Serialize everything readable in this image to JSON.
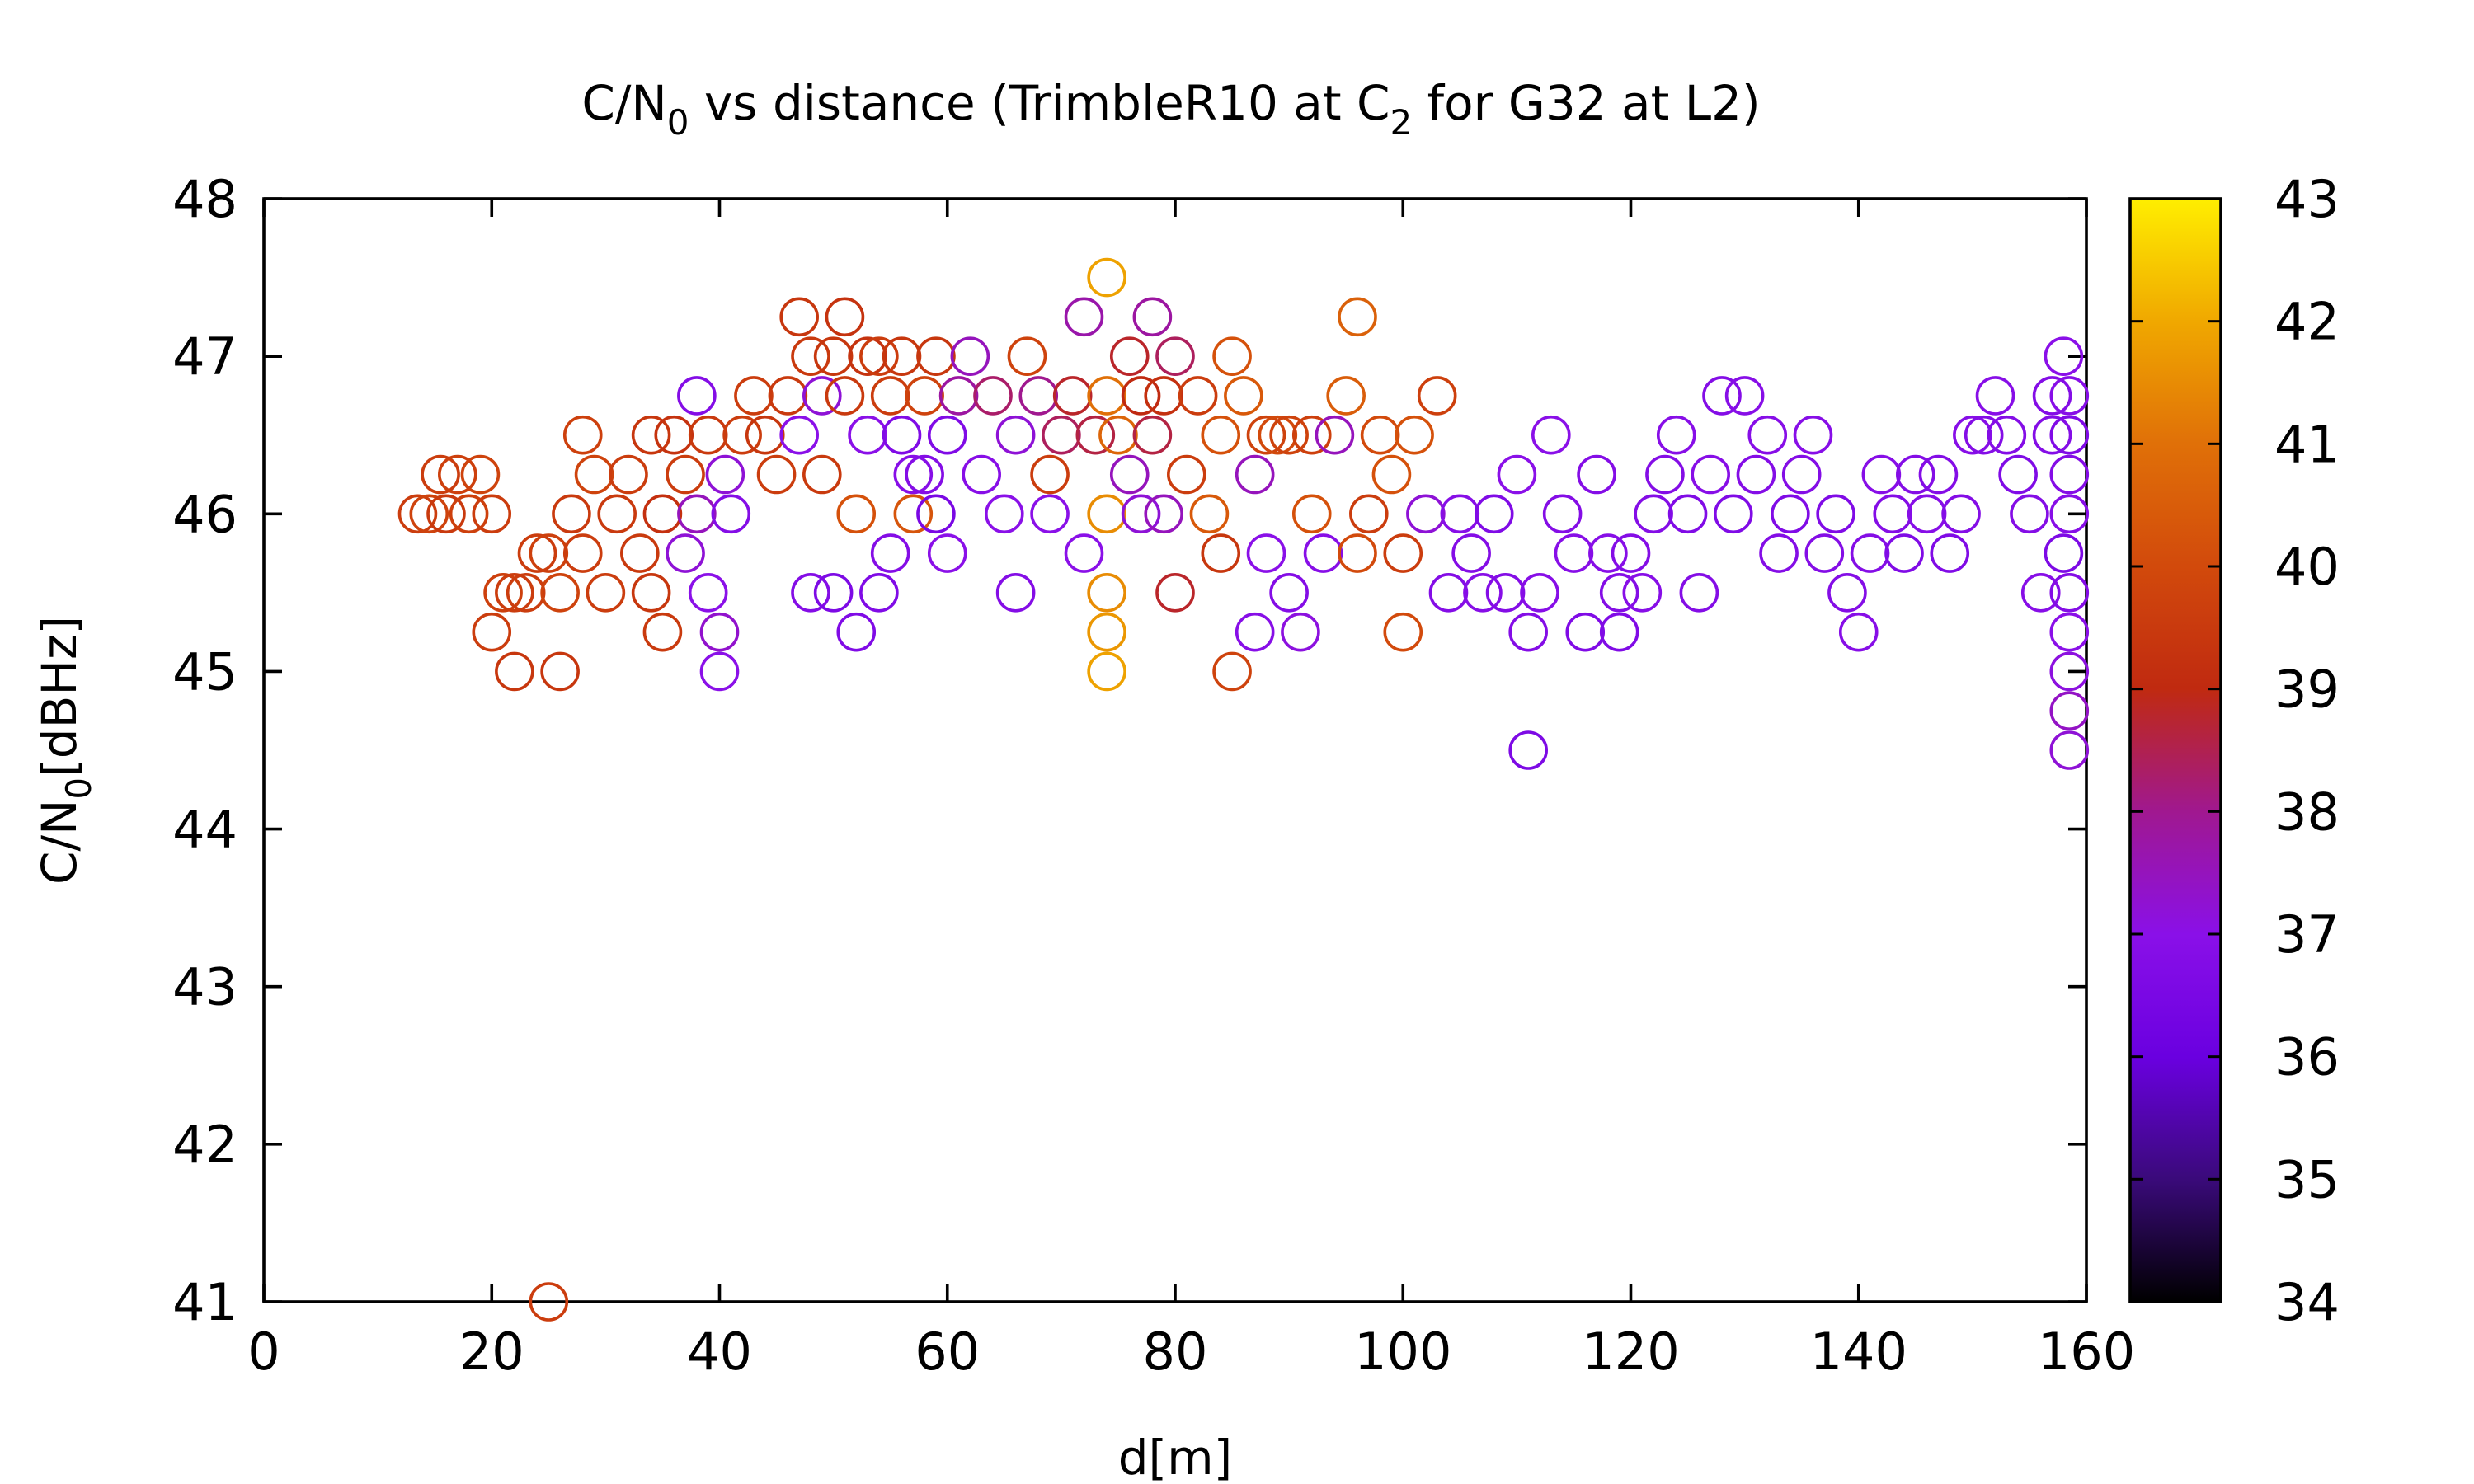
{
  "chart_data": {
    "type": "scatter",
    "title": {
      "pre": "C/N",
      "sub1": "0",
      "mid": " vs distance (TrimbleR10 at C",
      "sub2": "2",
      "post": " for G32 at L2)"
    },
    "xlabel": "d[m]",
    "ylabel": {
      "pre": "C/N",
      "sub": "0",
      "post": "[dBHz]"
    },
    "xlim": [
      0,
      160
    ],
    "ylim": [
      41,
      48
    ],
    "xticks": [
      "0",
      "20",
      "40",
      "60",
      "80",
      "100",
      "120",
      "140",
      "160"
    ],
    "yticks": [
      "41",
      "42",
      "43",
      "44",
      "45",
      "46",
      "47",
      "48"
    ],
    "colorbar": {
      "range": [
        34,
        43
      ],
      "ticks": [
        "34",
        "35",
        "36",
        "37",
        "38",
        "39",
        "40",
        "41",
        "42",
        "43"
      ]
    },
    "marker": "open circle",
    "grid": false,
    "note": "color encodes a third variable (values approx. read from colorbar)",
    "points": [
      [
        13.5,
        46,
        39.6
      ],
      [
        14.5,
        46,
        39.8
      ],
      [
        15.5,
        46.25,
        39.6
      ],
      [
        16,
        46,
        39.5
      ],
      [
        17,
        46.25,
        39.7
      ],
      [
        18,
        46,
        39.7
      ],
      [
        19,
        46.25,
        39.8
      ],
      [
        20,
        46,
        39.6
      ],
      [
        20,
        45.25,
        39.6
      ],
      [
        21,
        45.5,
        39.7
      ],
      [
        22,
        45.5,
        39.6
      ],
      [
        22,
        45,
        39.4
      ],
      [
        23,
        45.5,
        39.6
      ],
      [
        24,
        45.75,
        39.6
      ],
      [
        25,
        45.75,
        39.7
      ],
      [
        26,
        45,
        39.4
      ],
      [
        26,
        45.5,
        39.8
      ],
      [
        27,
        46,
        39.5
      ],
      [
        28,
        46.5,
        39.7
      ],
      [
        28,
        45.75,
        39.6
      ],
      [
        29,
        46.25,
        39.8
      ],
      [
        30,
        45.5,
        39.6
      ],
      [
        31,
        46,
        39.5
      ],
      [
        32,
        46.25,
        39.6
      ],
      [
        33,
        45.75,
        39.5
      ],
      [
        34,
        45.5,
        39.4
      ],
      [
        34,
        46.5,
        39.4
      ],
      [
        35,
        45.25,
        39.5
      ],
      [
        35,
        46,
        39.2
      ],
      [
        36,
        46.5,
        39.3
      ],
      [
        37,
        45.75,
        37.2
      ],
      [
        37,
        46.25,
        39.6
      ],
      [
        38,
        46.75,
        36.8
      ],
      [
        38,
        46,
        37.5
      ],
      [
        39,
        45.5,
        37
      ],
      [
        39,
        46.5,
        39.5
      ],
      [
        40,
        45.25,
        37.3
      ],
      [
        40,
        45,
        37
      ],
      [
        40.5,
        46.25,
        37.2
      ],
      [
        41,
        46,
        36.8
      ],
      [
        42,
        46.5,
        39.6
      ],
      [
        43,
        46.75,
        39.6
      ],
      [
        44,
        46.5,
        39.4
      ],
      [
        45,
        46.25,
        39.6
      ],
      [
        46,
        46.75,
        39.5
      ],
      [
        47,
        47.25,
        39.4
      ],
      [
        47,
        46.5,
        37
      ],
      [
        48,
        47,
        39.5
      ],
      [
        48,
        45.5,
        36.8
      ],
      [
        49,
        46.75,
        37.2
      ],
      [
        49,
        46.25,
        39.5
      ],
      [
        50,
        45.5,
        36.6
      ],
      [
        50,
        47,
        39.4
      ],
      [
        51,
        46.75,
        39.5
      ],
      [
        51,
        47.25,
        39.3
      ],
      [
        52,
        45.25,
        36.7
      ],
      [
        52,
        46,
        40.2
      ],
      [
        53,
        47,
        39.3
      ],
      [
        53,
        46.5,
        37
      ],
      [
        54,
        45.5,
        36.7
      ],
      [
        54,
        47,
        39.6
      ],
      [
        55,
        46.75,
        39.6
      ],
      [
        55,
        45.75,
        36.8
      ],
      [
        56,
        46.5,
        36.7
      ],
      [
        56,
        47,
        39.4
      ],
      [
        57,
        46.25,
        36.9
      ],
      [
        57,
        46,
        40.3
      ],
      [
        58,
        46.75,
        39.8
      ],
      [
        58,
        46.25,
        36.8
      ],
      [
        59,
        46,
        36.5
      ],
      [
        59,
        47,
        39.4
      ],
      [
        60,
        46.5,
        36.7
      ],
      [
        60,
        45.75,
        37
      ],
      [
        61,
        46.75,
        37.8
      ],
      [
        62,
        47,
        37.5
      ],
      [
        63,
        46.25,
        36.9
      ],
      [
        64,
        46.75,
        38.3
      ],
      [
        65,
        46,
        37
      ],
      [
        66,
        46.5,
        37.2
      ],
      [
        66,
        45.5,
        36.8
      ],
      [
        67,
        47,
        39.8
      ],
      [
        68,
        46.75,
        38
      ],
      [
        69,
        46.25,
        39.6
      ],
      [
        69,
        46,
        37
      ],
      [
        70,
        46.5,
        38.4
      ],
      [
        71,
        46.75,
        38.8
      ],
      [
        72,
        47.25,
        37.7
      ],
      [
        72,
        45.75,
        37
      ],
      [
        73,
        46.5,
        38.6
      ],
      [
        74,
        47.5,
        41.9
      ],
      [
        74,
        46.75,
        41
      ],
      [
        74,
        46,
        41.5
      ],
      [
        74,
        45.5,
        41.5
      ],
      [
        74,
        45.25,
        41.7
      ],
      [
        74,
        45,
        41.9
      ],
      [
        75,
        46.5,
        40.7
      ],
      [
        76,
        47,
        38.8
      ],
      [
        76,
        46.25,
        37.5
      ],
      [
        77,
        46.75,
        39
      ],
      [
        77,
        46,
        37.2
      ],
      [
        78,
        47.25,
        37.8
      ],
      [
        78,
        46.5,
        38.6
      ],
      [
        79,
        46.75,
        39.2
      ],
      [
        79,
        46,
        37.5
      ],
      [
        80,
        47,
        38.4
      ],
      [
        80,
        45.5,
        38.8
      ],
      [
        81,
        46.25,
        39.6
      ],
      [
        82,
        46.75,
        39.6
      ],
      [
        83,
        46,
        40.4
      ],
      [
        84,
        46.5,
        40.2
      ],
      [
        84,
        45.75,
        39.4
      ],
      [
        85,
        47,
        40.2
      ],
      [
        85,
        45,
        39.8
      ],
      [
        86,
        46.75,
        40.4
      ],
      [
        87,
        46.25,
        37.5
      ],
      [
        87,
        45.25,
        36.9
      ],
      [
        88,
        46.5,
        39.8
      ],
      [
        88,
        45.75,
        37
      ],
      [
        89,
        46.5,
        40
      ],
      [
        90,
        45.5,
        36.8
      ],
      [
        90,
        46.5,
        39.8
      ],
      [
        91,
        45.25,
        37.1
      ],
      [
        92,
        46,
        40.2
      ],
      [
        92,
        46.5,
        39.7
      ],
      [
        93,
        45.75,
        36.9
      ],
      [
        94,
        46.5,
        37.5
      ],
      [
        95,
        46.75,
        40.5
      ],
      [
        96,
        47.25,
        40.6
      ],
      [
        96,
        45.75,
        40
      ],
      [
        97,
        46,
        39.6
      ],
      [
        98,
        46.5,
        40
      ],
      [
        99,
        46.25,
        40.2
      ],
      [
        100,
        45.25,
        40
      ],
      [
        100,
        45.75,
        39.6
      ],
      [
        101,
        46.5,
        40.2
      ],
      [
        102,
        46,
        37.2
      ],
      [
        103,
        46.75,
        39.7
      ],
      [
        104,
        45.5,
        36.8
      ],
      [
        105,
        46,
        36.9
      ],
      [
        106,
        45.75,
        36.8
      ],
      [
        107,
        45.5,
        36.9
      ],
      [
        108,
        46,
        36.7
      ],
      [
        109,
        45.5,
        36.8
      ],
      [
        110,
        46.25,
        37
      ],
      [
        111,
        44.5,
        36.6
      ],
      [
        111,
        45.25,
        36.8
      ],
      [
        112,
        45.5,
        36.9
      ],
      [
        113,
        46.5,
        37
      ],
      [
        114,
        46,
        36.8
      ],
      [
        115,
        45.75,
        36.9
      ],
      [
        116,
        45.25,
        36.7
      ],
      [
        117,
        46.25,
        36.8
      ],
      [
        118,
        45.75,
        36.9
      ],
      [
        119,
        45.5,
        36.8
      ],
      [
        119,
        45.25,
        36.7
      ],
      [
        120,
        45.75,
        36.8
      ],
      [
        121,
        45.5,
        36.9
      ],
      [
        122,
        46,
        36.8
      ],
      [
        123,
        46.25,
        36.8
      ],
      [
        124,
        46.5,
        36.9
      ],
      [
        125,
        46,
        36.7
      ],
      [
        126,
        45.5,
        36.8
      ],
      [
        127,
        46.25,
        36.9
      ],
      [
        128,
        46.75,
        36.8
      ],
      [
        129,
        46,
        36.7
      ],
      [
        130,
        46.75,
        36.9
      ],
      [
        131,
        46.25,
        36.8
      ],
      [
        132,
        46.5,
        36.9
      ],
      [
        133,
        45.75,
        36.8
      ],
      [
        134,
        46,
        36.7
      ],
      [
        135,
        46.25,
        36.8
      ],
      [
        136,
        46.5,
        36.9
      ],
      [
        137,
        45.75,
        36.8
      ],
      [
        138,
        46,
        36.7
      ],
      [
        139,
        45.5,
        36.8
      ],
      [
        140,
        45.25,
        36.9
      ],
      [
        141,
        45.75,
        36.8
      ],
      [
        142,
        46.25,
        36.9
      ],
      [
        143,
        46,
        36.8
      ],
      [
        144,
        45.75,
        36.7
      ],
      [
        145,
        46.25,
        36.8
      ],
      [
        146,
        46,
        36.9
      ],
      [
        147,
        46.25,
        36.8
      ],
      [
        148,
        45.75,
        36.7
      ],
      [
        149,
        46,
        36.8
      ],
      [
        150,
        46.5,
        36.9
      ],
      [
        151,
        46.5,
        36.8
      ],
      [
        152,
        46.75,
        36.9
      ],
      [
        153,
        46.5,
        36.8
      ],
      [
        154,
        46.25,
        36.7
      ],
      [
        155,
        46,
        36.8
      ],
      [
        156,
        45.5,
        36.9
      ],
      [
        157,
        46.5,
        36.8
      ],
      [
        157,
        46.75,
        36.8
      ],
      [
        158,
        47,
        37
      ],
      [
        158,
        45.75,
        36.6
      ],
      [
        158.5,
        45.5,
        36.8
      ],
      [
        158.5,
        45.25,
        37
      ],
      [
        158.5,
        45,
        37.1
      ],
      [
        158.5,
        44.75,
        37.4
      ],
      [
        158.5,
        44.5,
        37.2
      ],
      [
        158.5,
        46.25,
        36.8
      ],
      [
        158.5,
        46,
        36.9
      ],
      [
        158.5,
        46.5,
        36.7
      ],
      [
        158.5,
        46.75,
        36.9
      ],
      [
        25,
        41,
        39.6
      ]
    ]
  }
}
